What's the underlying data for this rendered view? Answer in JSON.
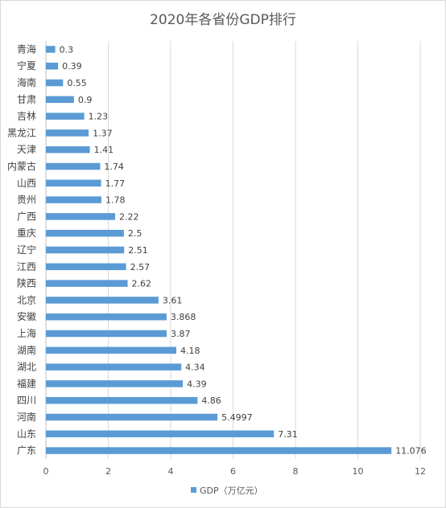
{
  "chart_data": {
    "type": "bar",
    "orientation": "horizontal",
    "title": "2020年各省份GDP排行",
    "categories": [
      "青海",
      "宁夏",
      "海南",
      "甘肃",
      "吉林",
      "黑龙江",
      "天津",
      "内蒙古",
      "山西",
      "贵州",
      "广西",
      "重庆",
      "辽宁",
      "江西",
      "陕西",
      "北京",
      "安徽",
      "上海",
      "湖南",
      "湖北",
      "福建",
      "四川",
      "河南",
      "山东",
      "广东"
    ],
    "values": [
      0.3,
      0.39,
      0.55,
      0.9,
      1.23,
      1.37,
      1.41,
      1.74,
      1.77,
      1.78,
      2.22,
      2.5,
      2.51,
      2.57,
      2.62,
      3.61,
      3.868,
      3.87,
      4.18,
      4.34,
      4.39,
      4.86,
      5.4997,
      7.31,
      11.076
    ],
    "value_labels": [
      "0.3",
      "0.39",
      "0.55",
      "0.9",
      "1.23",
      "1.37",
      "1.41",
      "1.74",
      "1.77",
      "1.78",
      "2.22",
      "2.5",
      "2.51",
      "2.57",
      "2.62",
      "3.61",
      "3.868",
      "3.87",
      "4.18",
      "4.34",
      "4.39",
      "4.86",
      "5.4997",
      "7.31",
      "11.076"
    ],
    "series": [
      {
        "name": "GDP（万亿元）"
      }
    ],
    "xlim": [
      0,
      12
    ],
    "xticks": [
      "0",
      "2",
      "4",
      "6",
      "8",
      "10",
      "12"
    ],
    "grid": "vertical",
    "legend": "bottom",
    "bar_color": "#5b9bd5",
    "grid_color": "#d9d9d9"
  }
}
